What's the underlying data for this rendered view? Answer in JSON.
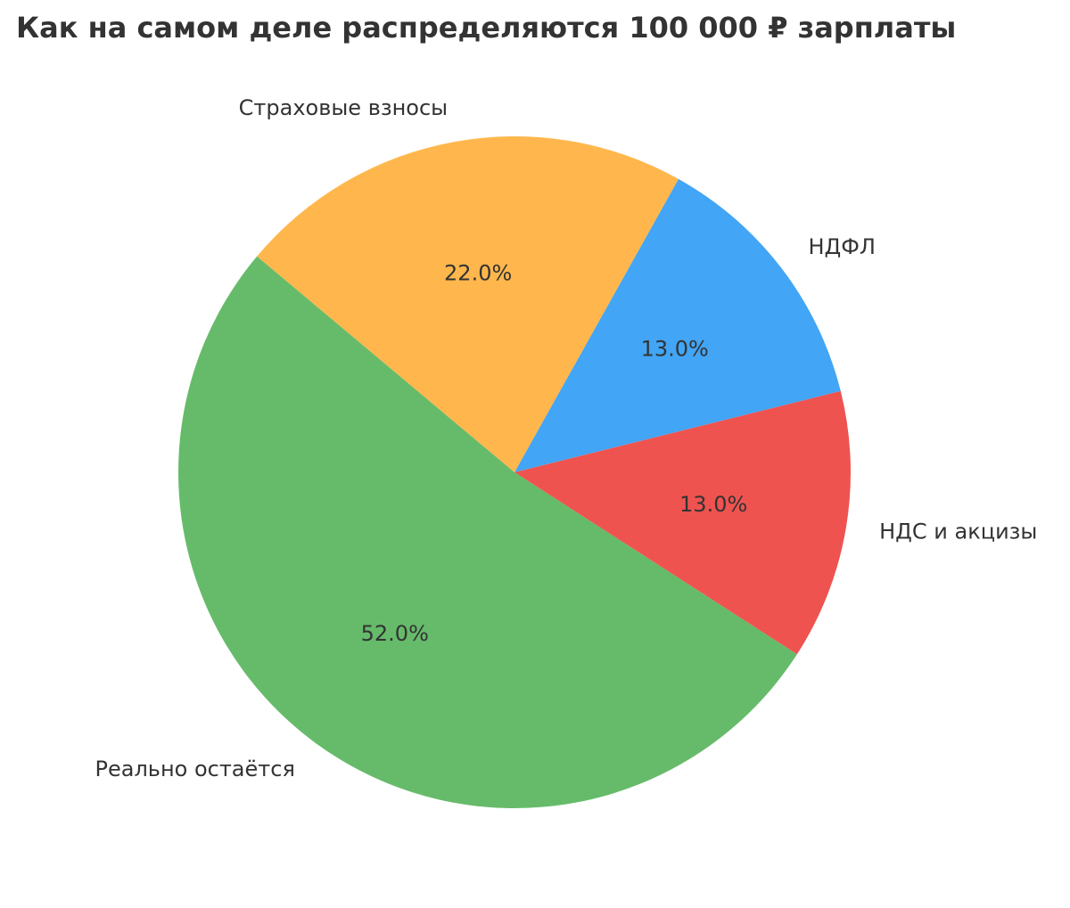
{
  "chart_data": {
    "type": "pie",
    "title": "Как на самом деле распределяются 100 000 ₽ зарплаты",
    "categories": [
      "Реально остаётся",
      "НДС и акцизы",
      "НДФЛ",
      "Страховые взносы"
    ],
    "values": [
      52,
      13,
      13,
      22
    ],
    "value_labels": [
      "52.0%",
      "13.0%",
      "13.0%",
      "22.0%"
    ],
    "colors": [
      "#66bb6a",
      "#ef5350",
      "#42a5f5",
      "#ffb74d"
    ]
  }
}
